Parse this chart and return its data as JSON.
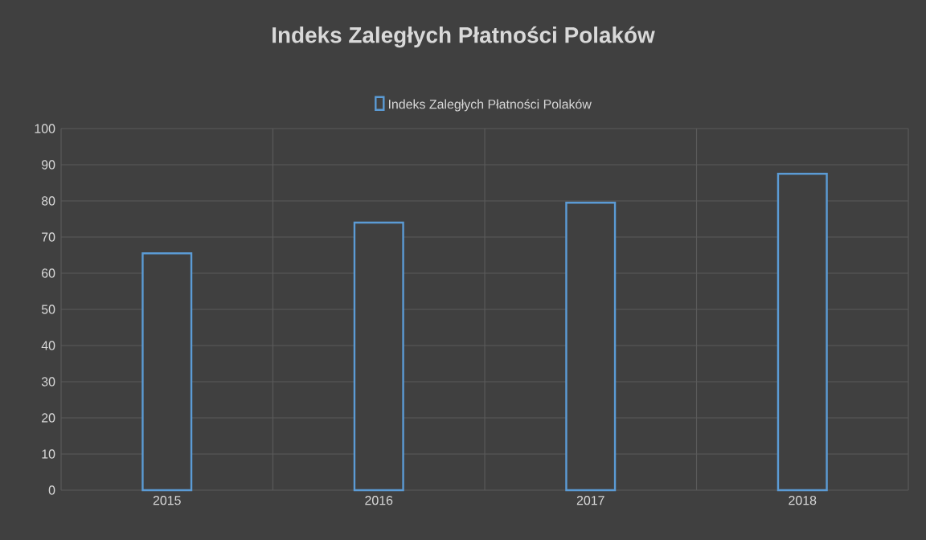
{
  "chart_data": {
    "type": "bar",
    "title": "Indeks Zaległych Płatności Polaków",
    "categories": [
      "2015",
      "2016",
      "2017",
      "2018"
    ],
    "series": [
      {
        "name": "Indeks Zaległych Płatności Polaków",
        "color": "#5b9bd5",
        "values": [
          65.5,
          74,
          79.5,
          87.5
        ]
      }
    ],
    "ylim": [
      0,
      100
    ],
    "yticks": [
      0,
      10,
      20,
      30,
      40,
      50,
      60,
      70,
      80,
      90,
      100
    ],
    "grid": true,
    "legend": "top"
  }
}
